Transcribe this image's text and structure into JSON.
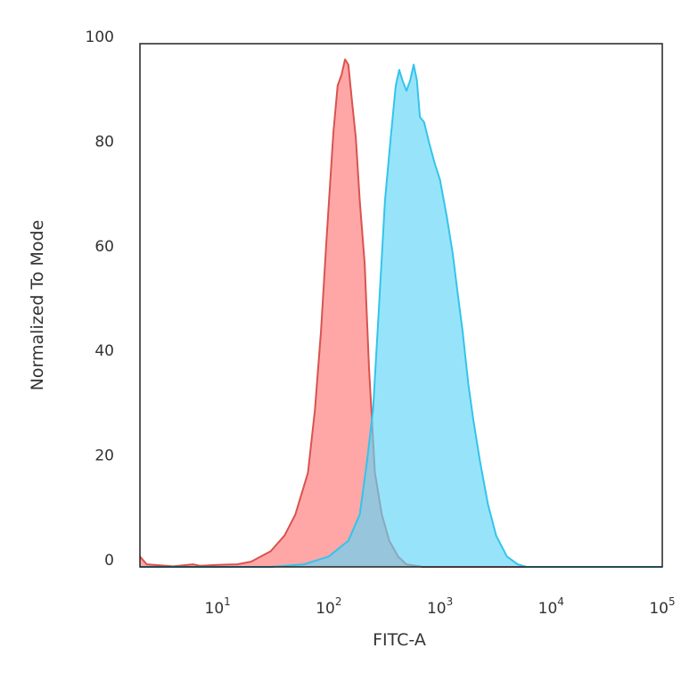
{
  "chart_data": {
    "type": "area",
    "xlabel": "FITC-A",
    "ylabel": "Normalized To Mode",
    "x_scale": "log",
    "xlim": [
      2,
      100000
    ],
    "ylim": [
      0,
      100
    ],
    "x_ticks": [
      {
        "value": 10,
        "base": "10",
        "exp": "1"
      },
      {
        "value": 100,
        "base": "10",
        "exp": "2"
      },
      {
        "value": 1000,
        "base": "10",
        "exp": "3"
      },
      {
        "value": 10000,
        "base": "10",
        "exp": "4"
      },
      {
        "value": 100000,
        "base": "10",
        "exp": "5"
      }
    ],
    "y_ticks": [
      {
        "value": 0,
        "label": "0"
      },
      {
        "value": 20,
        "label": "20"
      },
      {
        "value": 40,
        "label": "40"
      },
      {
        "value": 60,
        "label": "60"
      },
      {
        "value": 80,
        "label": "80"
      },
      {
        "value": 100,
        "label": "100"
      }
    ],
    "grid": false,
    "legend": "none",
    "series": [
      {
        "stroke": "#d9534f",
        "fill": "#ff8a8a",
        "fill_opacity": 0.75,
        "points": [
          [
            2,
            2
          ],
          [
            2.3,
            0.5
          ],
          [
            4,
            0.1
          ],
          [
            6,
            0.5
          ],
          [
            7,
            0.2
          ],
          [
            10,
            0.4
          ],
          [
            15,
            0.5
          ],
          [
            20,
            1
          ],
          [
            30,
            3
          ],
          [
            40,
            6
          ],
          [
            50,
            10
          ],
          [
            65,
            18
          ],
          [
            75,
            30
          ],
          [
            85,
            45
          ],
          [
            95,
            62
          ],
          [
            110,
            83
          ],
          [
            120,
            92
          ],
          [
            130,
            94
          ],
          [
            140,
            97
          ],
          [
            150,
            96
          ],
          [
            160,
            90
          ],
          [
            175,
            82
          ],
          [
            190,
            70
          ],
          [
            210,
            58
          ],
          [
            230,
            38
          ],
          [
            260,
            18
          ],
          [
            300,
            10
          ],
          [
            350,
            5
          ],
          [
            420,
            2
          ],
          [
            500,
            0.5
          ],
          [
            700,
            0
          ],
          [
            100000,
            0
          ]
        ]
      },
      {
        "stroke": "#33c4ec",
        "fill": "#5fd6f7",
        "fill_opacity": 0.65,
        "points": [
          [
            2,
            0
          ],
          [
            30,
            0
          ],
          [
            60,
            0.5
          ],
          [
            100,
            2
          ],
          [
            150,
            5
          ],
          [
            190,
            10
          ],
          [
            220,
            20
          ],
          [
            250,
            30
          ],
          [
            280,
            48
          ],
          [
            320,
            70
          ],
          [
            360,
            82
          ],
          [
            400,
            92
          ],
          [
            430,
            95
          ],
          [
            460,
            93
          ],
          [
            500,
            91
          ],
          [
            540,
            93
          ],
          [
            580,
            96
          ],
          [
            620,
            93
          ],
          [
            660,
            86
          ],
          [
            720,
            85
          ],
          [
            800,
            81
          ],
          [
            900,
            77
          ],
          [
            1000,
            74
          ],
          [
            1150,
            67
          ],
          [
            1300,
            60
          ],
          [
            1450,
            52
          ],
          [
            1600,
            45
          ],
          [
            1800,
            35
          ],
          [
            2000,
            28
          ],
          [
            2300,
            20
          ],
          [
            2700,
            12
          ],
          [
            3200,
            6
          ],
          [
            4000,
            2
          ],
          [
            5000,
            0.5
          ],
          [
            6000,
            0
          ],
          [
            100000,
            0
          ]
        ]
      }
    ]
  }
}
